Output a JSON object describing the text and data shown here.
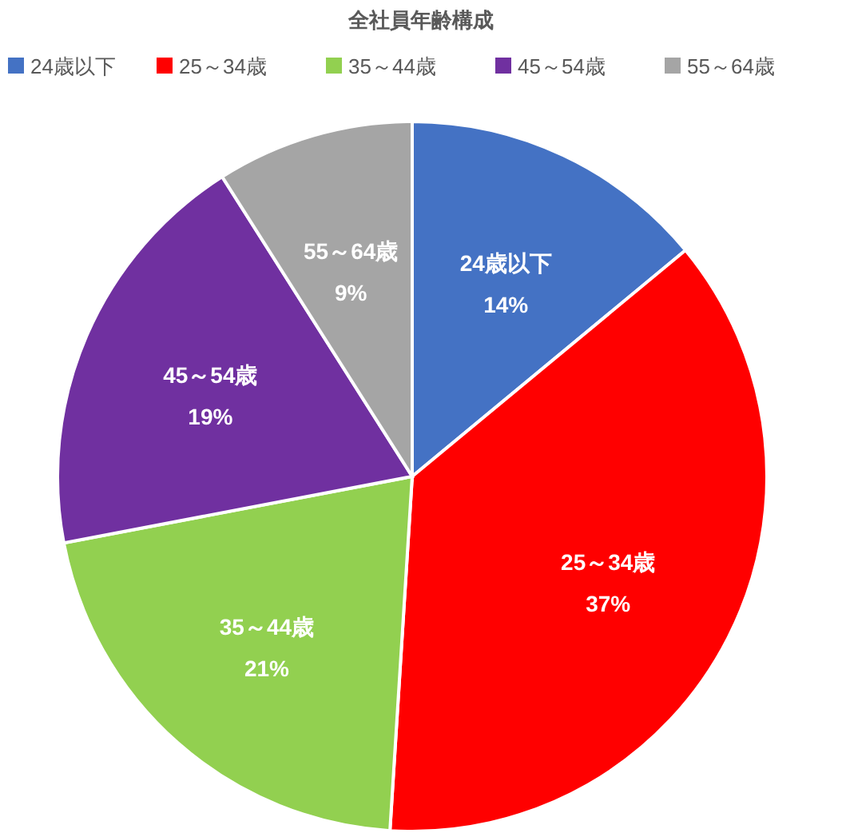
{
  "chart_data": {
    "type": "pie",
    "title": "全社員年齢構成",
    "categories": [
      "24歳以下",
      "25～34歳",
      "35～44歳",
      "45～54歳",
      "55～64歳"
    ],
    "values": [
      14,
      37,
      21,
      19,
      9
    ],
    "colors": [
      "#4472c4",
      "#ff0000",
      "#92d050",
      "#7030a0",
      "#a5a5a5"
    ],
    "value_labels": [
      "14%",
      "37%",
      "21%",
      "19%",
      "9%"
    ],
    "legend": "top"
  }
}
